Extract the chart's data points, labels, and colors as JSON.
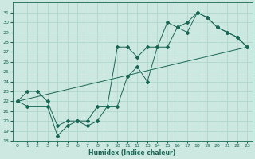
{
  "xlabel": "Humidex (Indice chaleur)",
  "xlim": [
    -0.5,
    23.5
  ],
  "ylim": [
    18,
    32
  ],
  "yticks": [
    18,
    19,
    20,
    21,
    22,
    23,
    24,
    25,
    26,
    27,
    28,
    29,
    30,
    31
  ],
  "xticks": [
    0,
    1,
    2,
    3,
    4,
    5,
    6,
    7,
    8,
    9,
    10,
    11,
    12,
    13,
    14,
    15,
    16,
    17,
    18,
    19,
    20,
    21,
    22,
    23
  ],
  "bg_color": "#cce8e0",
  "grid_color": "#aad4c8",
  "line_color": "#1a6655",
  "line1_x": [
    0,
    1,
    2,
    3,
    4,
    5,
    6,
    7,
    8,
    9,
    10,
    11,
    12,
    13,
    14,
    15,
    16,
    17,
    18,
    19,
    20,
    21,
    22,
    23
  ],
  "line1_y": [
    22,
    23,
    23,
    22,
    19.5,
    20,
    20,
    20,
    21.5,
    21.5,
    27.5,
    27.5,
    26.5,
    27.5,
    27.5,
    30,
    29.5,
    30,
    31,
    30.5,
    29.5,
    29,
    28.5,
    27.5
  ],
  "line2_x": [
    0,
    1,
    3,
    4,
    5,
    6,
    7,
    8,
    9,
    10,
    11,
    12,
    13,
    14,
    15,
    16,
    17,
    18,
    19,
    20,
    21,
    22,
    23
  ],
  "line2_y": [
    22,
    21.5,
    21.5,
    18.5,
    19.5,
    20,
    19.5,
    20,
    21.5,
    21.5,
    24.5,
    25.5,
    24,
    27.5,
    27.5,
    29.5,
    29,
    31,
    30.5,
    29.5,
    29,
    28.5,
    27.5
  ],
  "line3_x": [
    0,
    23
  ],
  "line3_y": [
    22,
    27.5
  ]
}
